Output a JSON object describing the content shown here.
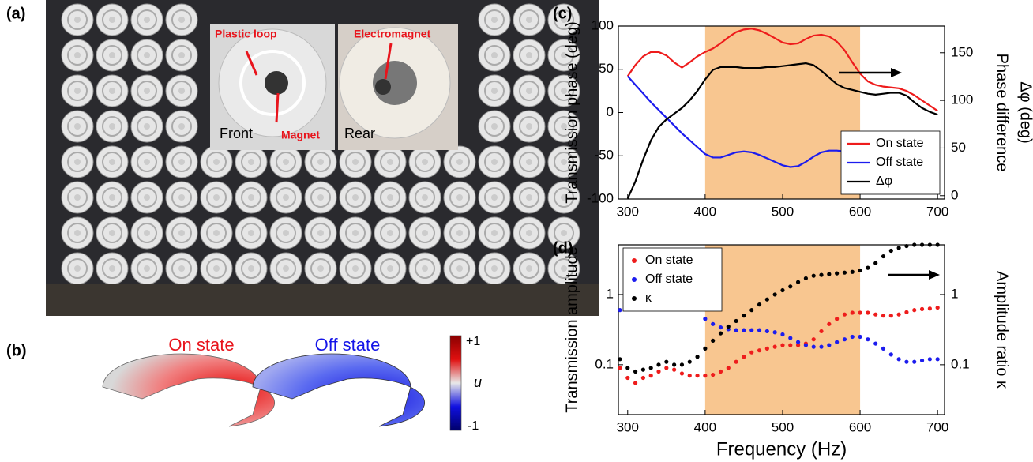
{
  "panel_labels": [
    "(a)",
    "(b)",
    "(c)",
    "(d)"
  ],
  "photo": {
    "plastic_loop": "Plastic loop",
    "magnet": "Magnet",
    "electromagnet": "Electromagnet",
    "front": "Front",
    "rear": "Rear"
  },
  "simulation": {
    "on_label": "On state",
    "off_label": "Off  state",
    "colorbar_max": "+1",
    "colorbar_symbol": "u",
    "colorbar_min": "-1"
  },
  "chart_data": [
    {
      "type": "line",
      "ylabel": "Transmission phase (deg)",
      "y2label": [
        "Phase difference",
        "Δφ (deg)"
      ],
      "xlim": [
        288,
        709
      ],
      "xticks": [
        300,
        400,
        500,
        600,
        700
      ],
      "ylim": [
        -100,
        100
      ],
      "yticks": [
        -100,
        -50,
        0,
        50,
        100
      ],
      "y2lim": [
        -3.5,
        178
      ],
      "y2ticks": [
        0,
        50,
        100,
        150
      ],
      "shade": [
        400,
        600
      ],
      "shade_color": "#f8c690",
      "legend": "lower right",
      "x": [
        300,
        310,
        320,
        330,
        340,
        350,
        360,
        370,
        380,
        390,
        400,
        410,
        420,
        430,
        440,
        450,
        460,
        470,
        480,
        490,
        500,
        510,
        520,
        530,
        540,
        550,
        560,
        570,
        580,
        590,
        600,
        610,
        620,
        630,
        640,
        650,
        660,
        670,
        680,
        690,
        700
      ],
      "series": [
        {
          "name": "On state",
          "color": "#ee1c1c",
          "values": [
            42,
            55,
            65,
            70,
            70,
            66,
            58,
            52,
            58,
            65,
            70,
            74,
            80,
            87,
            93,
            96,
            97,
            95,
            91,
            86,
            81,
            79,
            80,
            85,
            89,
            90,
            88,
            82,
            72,
            58,
            45,
            36,
            32,
            30,
            29,
            28,
            25,
            20,
            14,
            8,
            2
          ]
        },
        {
          "name": "Off  state",
          "color": "#1c1cee",
          "values": [
            42,
            32,
            22,
            12,
            3,
            -6,
            -15,
            -24,
            -32,
            -40,
            -48,
            -52,
            -52,
            -49,
            -46,
            -45,
            -46,
            -49,
            -53,
            -57,
            -61,
            -63,
            -62,
            -57,
            -51,
            -46,
            -44,
            -44,
            -45,
            -46,
            -48,
            -50,
            -52,
            -54,
            -56,
            -58,
            -61,
            -64,
            -67,
            -70,
            -73
          ]
        },
        {
          "name": "Δφ",
          "color": "#000000",
          "axis": "y2",
          "values": [
            -3,
            15,
            38,
            58,
            72,
            80,
            86,
            92,
            100,
            110,
            122,
            132,
            135,
            135,
            135,
            134,
            134,
            134,
            135,
            135,
            136,
            137,
            138,
            139,
            137,
            131,
            124,
            117,
            113,
            111,
            109,
            107,
            106,
            107,
            108,
            108,
            105,
            98,
            92,
            88,
            85
          ]
        }
      ]
    },
    {
      "type": "scatter",
      "ylabel": "Transmission amplitude",
      "y2label": [
        "Amplitude ratio κ"
      ],
      "xlabel": "Frequency (Hz)",
      "xlim": [
        288,
        709
      ],
      "xticks": [
        300,
        400,
        500,
        600,
        700
      ],
      "ylim": [
        0.0195,
        5.1
      ],
      "yticks": [
        0.1,
        1
      ],
      "log_y": true,
      "y2lim": [
        0.0195,
        5.1
      ],
      "y2ticks": [
        0.1,
        1
      ],
      "shade": [
        400,
        600
      ],
      "shade_color": "#f8c690",
      "legend": "upper left",
      "x": [
        290,
        300,
        310,
        320,
        330,
        340,
        350,
        360,
        370,
        380,
        390,
        400,
        410,
        420,
        430,
        440,
        450,
        460,
        470,
        480,
        490,
        500,
        510,
        520,
        530,
        540,
        550,
        560,
        570,
        580,
        590,
        600,
        610,
        620,
        630,
        640,
        650,
        660,
        670,
        680,
        690,
        700
      ],
      "series": [
        {
          "name": "On state",
          "color": "#ee1c1c",
          "values": [
            0.09,
            0.065,
            0.055,
            0.065,
            0.07,
            0.08,
            0.09,
            0.085,
            0.075,
            0.07,
            0.07,
            0.07,
            0.072,
            0.08,
            0.09,
            0.11,
            0.13,
            0.15,
            0.16,
            0.17,
            0.18,
            0.19,
            0.19,
            0.19,
            0.2,
            0.23,
            0.3,
            0.38,
            0.45,
            0.52,
            0.55,
            0.55,
            0.55,
            0.52,
            0.5,
            0.5,
            0.52,
            0.56,
            0.6,
            0.62,
            0.63,
            0.65
          ]
        },
        {
          "name": "Off state",
          "color": "#1c1cee",
          "values": [
            0.6,
            null,
            null,
            null,
            null,
            null,
            null,
            null,
            null,
            null,
            null,
            0.45,
            0.38,
            0.34,
            0.32,
            0.31,
            0.31,
            0.31,
            0.31,
            0.3,
            0.29,
            0.27,
            0.24,
            0.21,
            0.19,
            0.18,
            0.18,
            0.19,
            0.21,
            0.23,
            0.25,
            0.25,
            0.23,
            0.2,
            0.17,
            0.14,
            0.12,
            0.11,
            0.11,
            0.115,
            0.12,
            0.12
          ]
        },
        {
          "name": "κ",
          "color": "#000000",
          "axis": "y2",
          "values": [
            0.12,
            0.09,
            0.08,
            0.085,
            0.09,
            0.1,
            0.11,
            0.1,
            0.1,
            0.11,
            0.13,
            0.17,
            0.22,
            0.28,
            0.35,
            0.42,
            0.5,
            0.6,
            0.72,
            0.85,
            1.0,
            1.15,
            1.3,
            1.5,
            1.7,
            1.85,
            1.9,
            1.95,
            2.0,
            2.05,
            2.1,
            2.2,
            2.4,
            2.8,
            3.5,
            4.2,
            4.6,
            4.9,
            5.1,
            5.1,
            5.1,
            5.1
          ]
        }
      ]
    }
  ]
}
